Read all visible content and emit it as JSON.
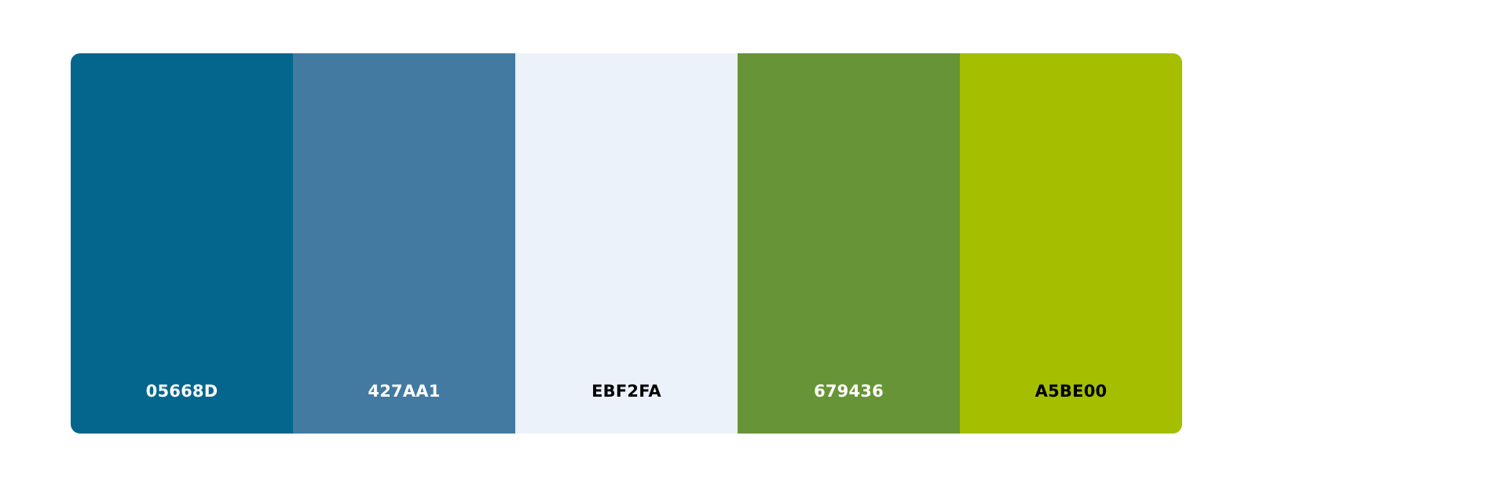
{
  "palette": {
    "swatches": [
      {
        "hex": "05668D",
        "color": "#05668D",
        "text_color": "#FFFFFF"
      },
      {
        "hex": "427AA1",
        "color": "#427AA1",
        "text_color": "#FFFFFF"
      },
      {
        "hex": "EBF2FA",
        "color": "#EBF2FA",
        "text_color": "#000000"
      },
      {
        "hex": "679436",
        "color": "#679436",
        "text_color": "#FFFFFF"
      },
      {
        "hex": "A5BE00",
        "color": "#A5BE00",
        "text_color": "#000000"
      }
    ]
  }
}
